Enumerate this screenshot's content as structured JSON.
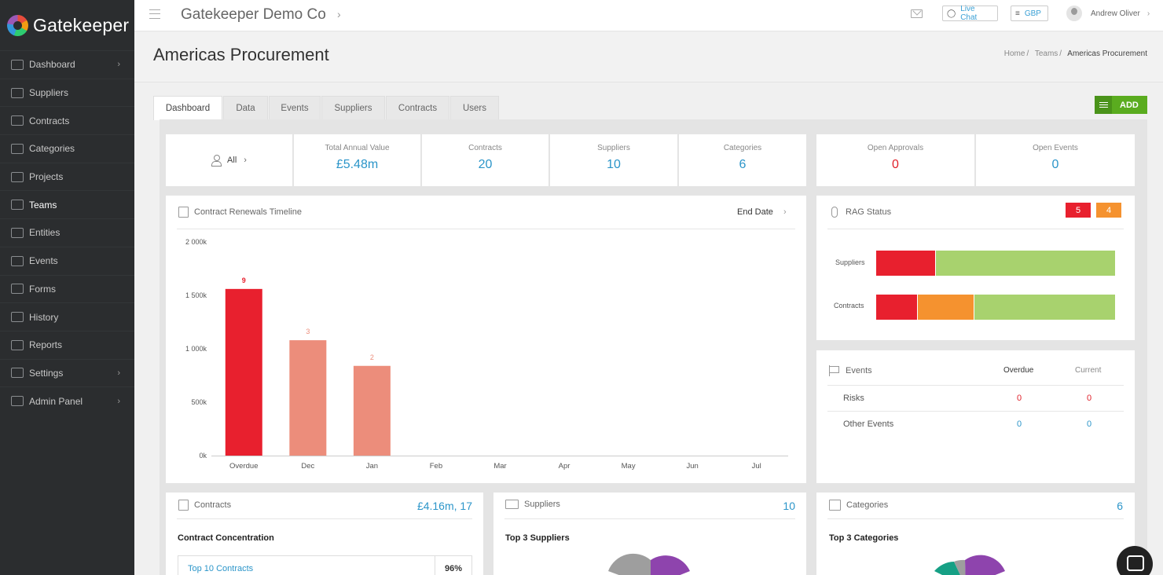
{
  "app": {
    "logo_text": "Gatekeeper"
  },
  "sidebar": {
    "items": [
      {
        "label": "Dashboard",
        "chevron": "›"
      },
      {
        "label": "Suppliers"
      },
      {
        "label": "Contracts"
      },
      {
        "label": "Categories"
      },
      {
        "label": "Projects"
      },
      {
        "label": "Teams",
        "active": true
      },
      {
        "label": "Entities"
      },
      {
        "label": "Events"
      },
      {
        "label": "Forms"
      },
      {
        "label": "History"
      },
      {
        "label": "Reports"
      },
      {
        "label": "Settings",
        "chevron": "›"
      },
      {
        "label": "Admin Panel",
        "chevron": "›"
      }
    ]
  },
  "topbar": {
    "company": "Gatekeeper Demo Co",
    "company_chevron": "›",
    "live_chat": "Live Chat",
    "currency": "GBP",
    "user_name": "Andrew Oliver",
    "user_chevron": "›"
  },
  "header": {
    "title": "Americas Procurement",
    "breadcrumb": {
      "home": "Home",
      "teams": "Teams",
      "current": "Americas Procurement",
      "sep": "/"
    }
  },
  "tabs": [
    "Dashboard",
    "Data",
    "Events",
    "Suppliers",
    "Contracts",
    "Users"
  ],
  "add_button": "ADD",
  "stats": {
    "filter": {
      "label": "All",
      "chevron": "›"
    },
    "total_annual_value": {
      "label": "Total Annual Value",
      "value": "£5.48m"
    },
    "contracts": {
      "label": "Contracts",
      "value": "20"
    },
    "suppliers": {
      "label": "Suppliers",
      "value": "10"
    },
    "categories": {
      "label": "Categories",
      "value": "6"
    },
    "open_approvals": {
      "label": "Open Approvals",
      "value": "0"
    },
    "open_events": {
      "label": "Open Events",
      "value": "0"
    }
  },
  "timeline": {
    "title": "Contract Renewals Timeline",
    "selector": "End Date",
    "selector_chevron": "›"
  },
  "chart_data": {
    "type": "bar",
    "title": "Contract Renewals Timeline",
    "categories": [
      "Overdue",
      "Dec",
      "Jan",
      "Feb",
      "Mar",
      "Apr",
      "May",
      "Jun",
      "Jul"
    ],
    "values": [
      1560000,
      1080000,
      840000,
      0,
      0,
      0,
      0,
      0,
      0
    ],
    "counts": [
      "9",
      "3",
      "2",
      "",
      "",
      "",
      "",
      "",
      ""
    ],
    "ylim": [
      0,
      2000000
    ],
    "yticks": [
      0,
      500000,
      1000000,
      1500000,
      2000000
    ],
    "ytick_labels": [
      "0k",
      "500k",
      "1 000k",
      "1 500k",
      "2 000k"
    ],
    "colors": {
      "overdue": "#e8202e",
      "upcoming": "#ec8d7b"
    },
    "grid": false
  },
  "rag": {
    "title": "RAG Status",
    "badges": [
      {
        "value": "5",
        "color": "#e8202e"
      },
      {
        "value": "4",
        "color": "#f5922f"
      }
    ],
    "rows": [
      {
        "label": "Suppliers",
        "segments": [
          {
            "fraction": 0.25,
            "color": "#e8202e"
          },
          {
            "fraction": 0.75,
            "color": "#a8d26e"
          }
        ]
      },
      {
        "label": "Contracts",
        "segments": [
          {
            "fraction": 0.175,
            "color": "#e8202e"
          },
          {
            "fraction": 0.235,
            "color": "#f5922f"
          },
          {
            "fraction": 0.59,
            "color": "#a8d26e"
          }
        ]
      }
    ]
  },
  "events_panel": {
    "title": "Events",
    "col_overdue": "Overdue",
    "col_current": "Current",
    "rows": [
      {
        "label": "Risks",
        "overdue": "0",
        "current": "0"
      },
      {
        "label": "Other Events",
        "overdue": "0",
        "current": "0"
      }
    ]
  },
  "contracts_panel": {
    "title": "Contracts",
    "value": "£4.16m, 17",
    "subtitle": "Contract Concentration",
    "row_label": "Top 10 Contracts",
    "row_value": "96%"
  },
  "suppliers_panel": {
    "title": "Suppliers",
    "value": "10",
    "subtitle": "Top 3 Suppliers"
  },
  "categories_panel": {
    "title": "Categories",
    "value": "6",
    "subtitle": "Top 3 Categories"
  }
}
